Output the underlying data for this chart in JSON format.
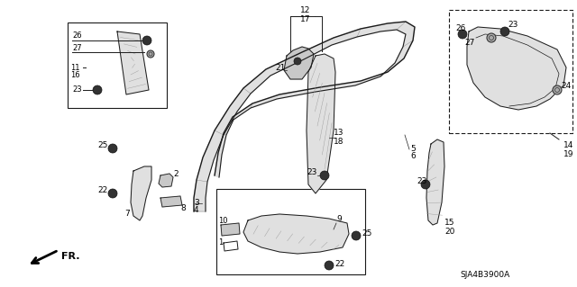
{
  "bg_color": "#ffffff",
  "diagram_code": "SJA4B3900A",
  "fig_width": 6.4,
  "fig_height": 3.19,
  "dpi": 100,
  "colors": {
    "line": "#1a1a1a",
    "fill_light": "#e0e0e0",
    "fill_mid": "#c8c8c8",
    "fill_dark": "#b0b0b0",
    "text": "#000000",
    "screw_fill": "#444444",
    "screw_ring": "#888888"
  }
}
